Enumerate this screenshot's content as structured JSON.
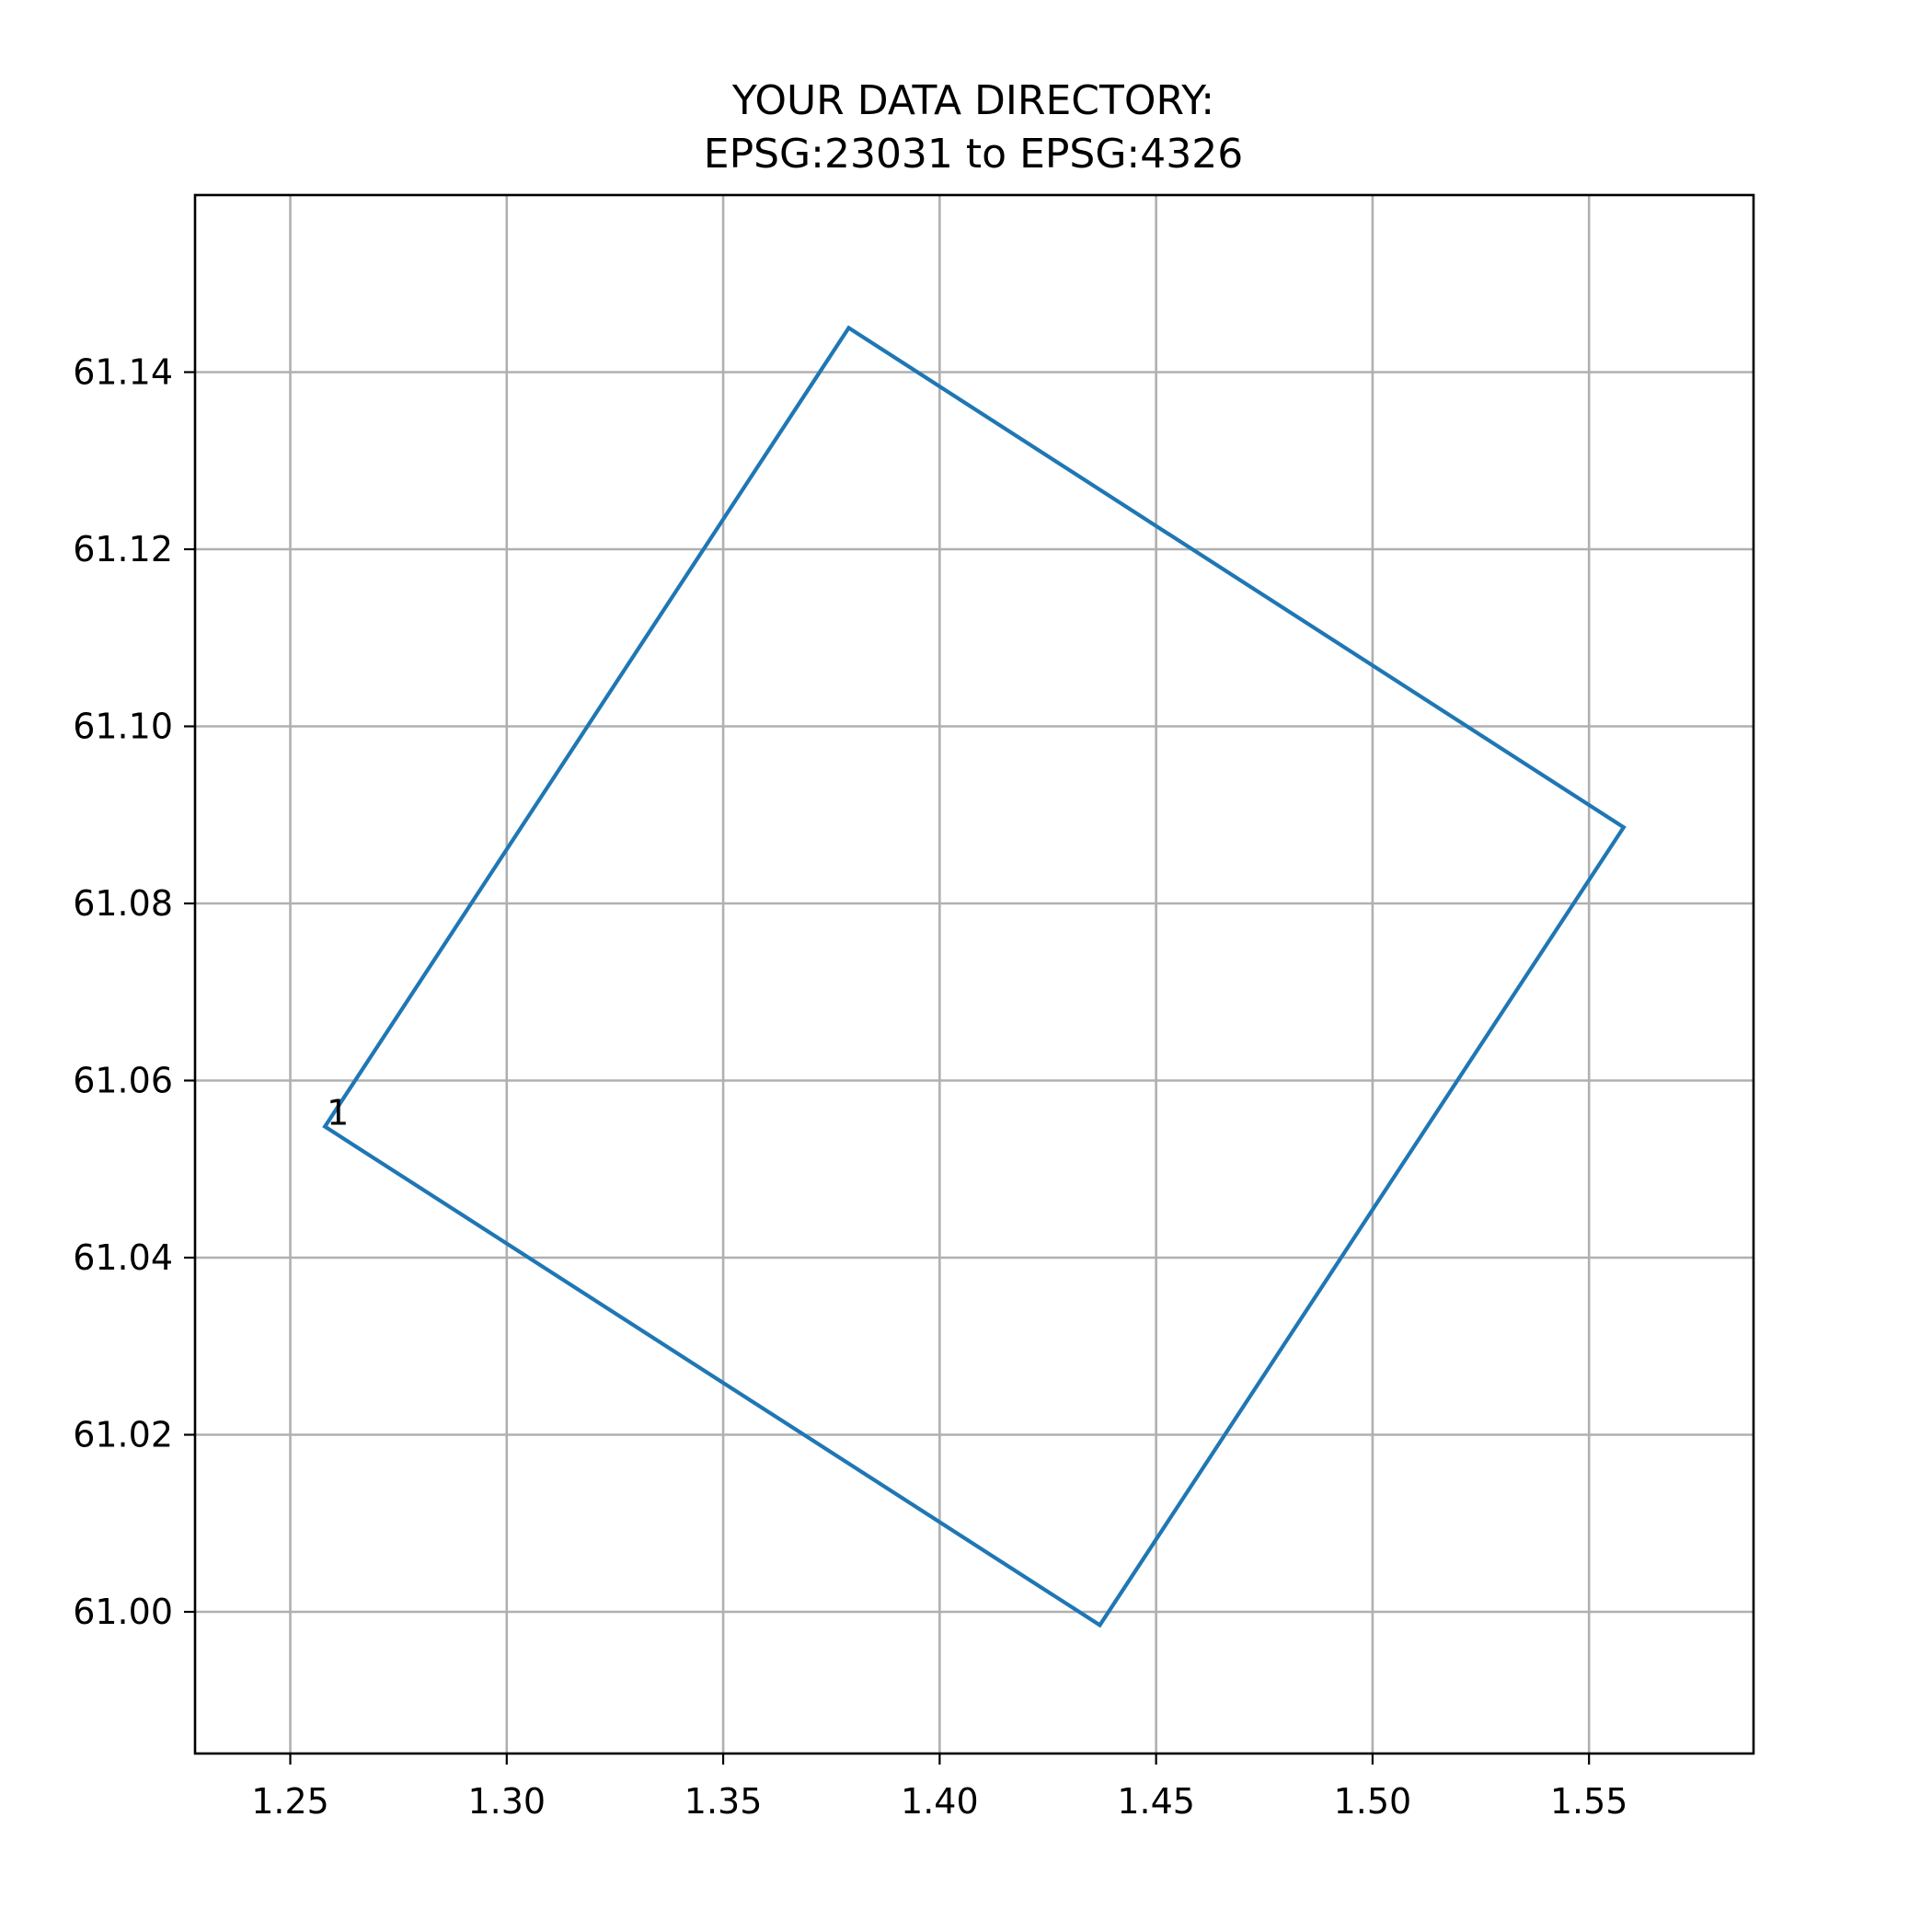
{
  "chart_data": {
    "type": "line",
    "title_lines": [
      "YOUR DATA DIRECTORY:",
      "EPSG:23031 to EPSG:4326"
    ],
    "xlabel": "",
    "ylabel": "",
    "xlim": [
      1.228,
      1.588
    ],
    "ylim": [
      60.984,
      61.16
    ],
    "grid": true,
    "x_ticks": [
      1.25,
      1.3,
      1.35,
      1.4,
      1.45,
      1.5,
      1.55
    ],
    "x_tick_labels": [
      "1.25",
      "1.30",
      "1.35",
      "1.40",
      "1.45",
      "1.50",
      "1.55"
    ],
    "y_ticks": [
      61.0,
      61.02,
      61.04,
      61.06,
      61.08,
      61.1,
      61.12,
      61.14
    ],
    "y_tick_labels": [
      "61.00",
      "61.02",
      "61.04",
      "61.06",
      "61.08",
      "61.10",
      "61.12",
      "61.14"
    ],
    "series": [
      {
        "color": "#1f77b4",
        "x": [
          1.258,
          1.379,
          1.558,
          1.437,
          1.258
        ],
        "y": [
          61.0548,
          61.145,
          61.0886,
          60.9985,
          61.0548
        ]
      }
    ],
    "annotations": [
      {
        "text": "1",
        "x": 1.258,
        "y": 61.0548
      }
    ]
  }
}
